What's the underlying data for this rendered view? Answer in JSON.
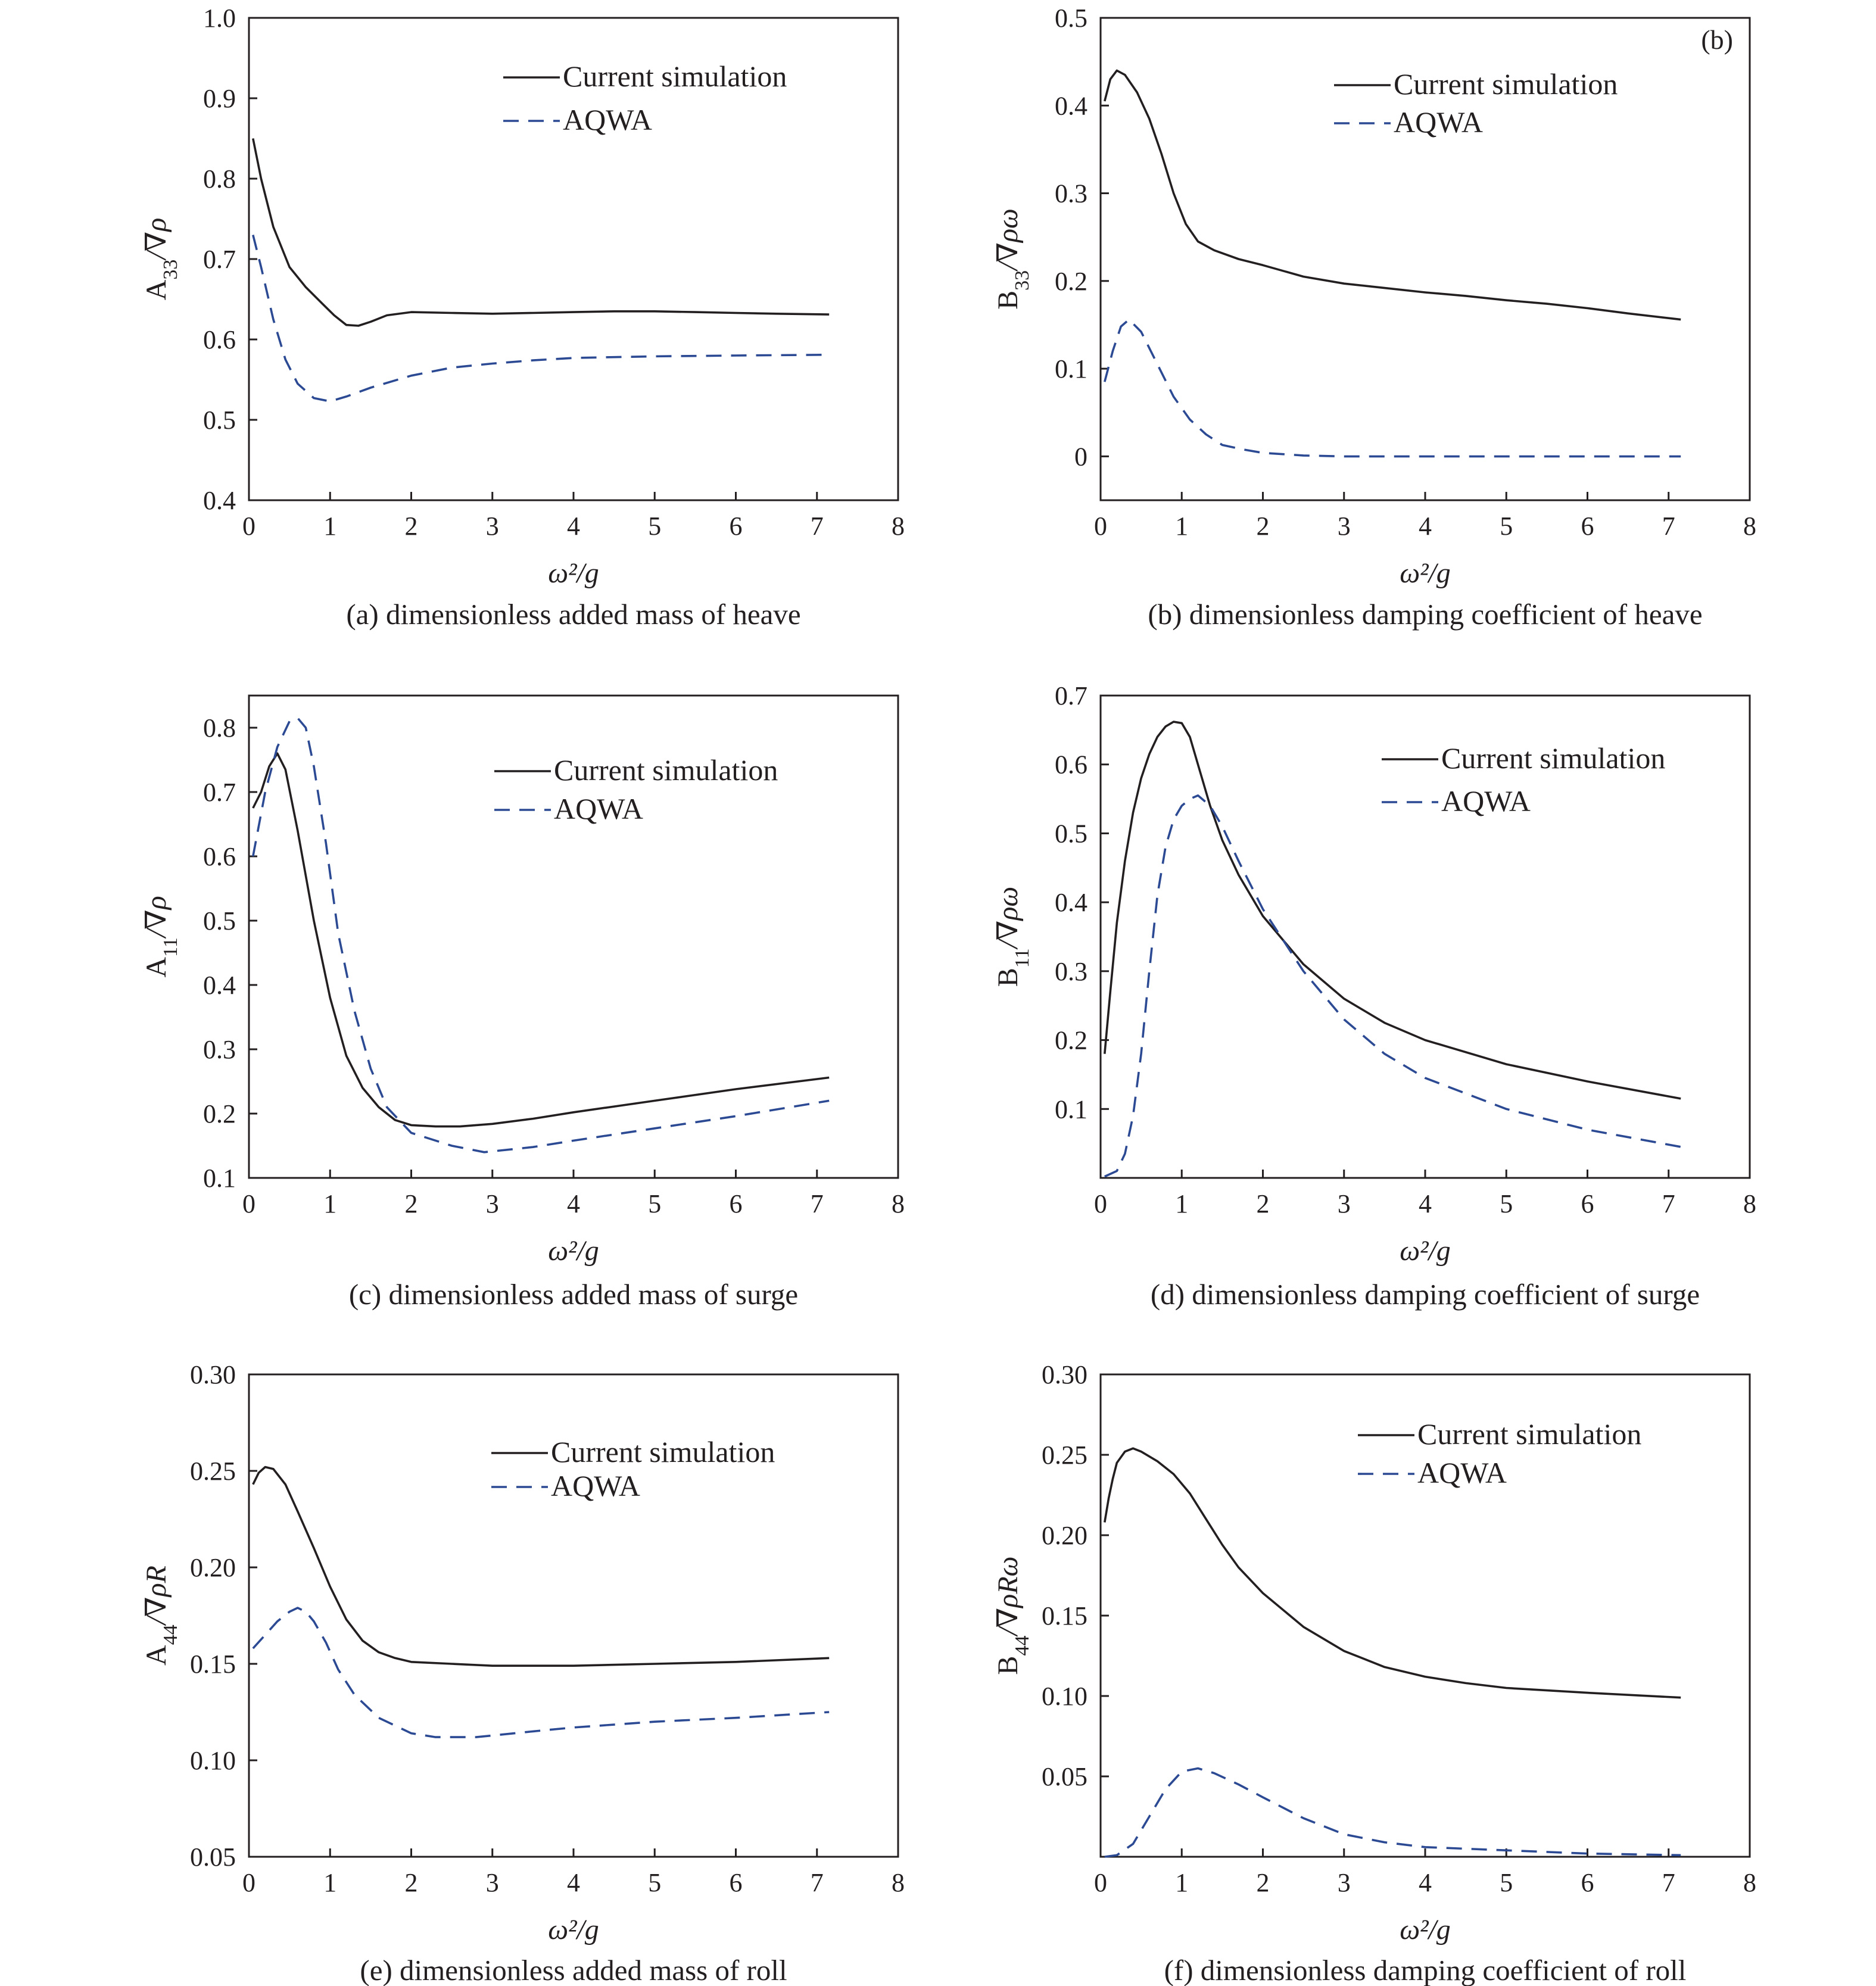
{
  "figure": {
    "legend": {
      "simulation": "Current simulation",
      "aqwa": "AQWA"
    },
    "xlabel": "ω²/g"
  },
  "colors": {
    "simulation": "#231f20",
    "aqwa": "#2c4a93",
    "axes": "#231f20"
  },
  "chart_data": [
    {
      "id": "a",
      "type": "line",
      "caption": "(a) dimensionless added mass of heave",
      "ylabel_main": "A",
      "ylabel_sub": "33",
      "ylabel_rest": "/∇ρ",
      "xlabel": "ω²/g",
      "xlim": [
        0,
        8
      ],
      "ylim": [
        0.4,
        1.0
      ],
      "xticks": [
        "0",
        "1",
        "2",
        "3",
        "4",
        "5",
        "6",
        "7",
        "8"
      ],
      "yticks": [
        "0.4",
        "0.5",
        "0.6",
        "0.7",
        "0.8",
        "0.9",
        "1.0"
      ],
      "series": [
        {
          "name": "Current simulation",
          "x": [
            0.05,
            0.15,
            0.3,
            0.5,
            0.7,
            0.9,
            1.05,
            1.2,
            1.35,
            1.5,
            1.7,
            2.0,
            2.5,
            3.0,
            3.5,
            4.0,
            4.5,
            5.0,
            5.5,
            6.0,
            6.5,
            7.15
          ],
          "y": [
            0.85,
            0.8,
            0.74,
            0.69,
            0.665,
            0.645,
            0.63,
            0.618,
            0.617,
            0.622,
            0.63,
            0.634,
            0.633,
            0.632,
            0.633,
            0.634,
            0.635,
            0.635,
            0.634,
            0.633,
            0.632,
            0.631
          ]
        },
        {
          "name": "AQWA",
          "x": [
            0.05,
            0.15,
            0.3,
            0.45,
            0.6,
            0.8,
            1.0,
            1.2,
            1.5,
            2.0,
            2.5,
            3.0,
            3.5,
            4.0,
            4.5,
            5.0,
            6.0,
            7.15
          ],
          "y": [
            0.73,
            0.69,
            0.625,
            0.575,
            0.545,
            0.527,
            0.523,
            0.529,
            0.54,
            0.555,
            0.565,
            0.57,
            0.574,
            0.577,
            0.578,
            0.579,
            0.58,
            0.581
          ]
        }
      ]
    },
    {
      "id": "b",
      "type": "line",
      "caption": "(b) dimensionless damping coefficient of heave",
      "panel_tag": "(b)",
      "ylabel_main": "B",
      "ylabel_sub": "33",
      "ylabel_rest": "/∇ρω",
      "xlabel": "ω²/g",
      "xlim": [
        0,
        8
      ],
      "ylim": [
        -0.05,
        0.5
      ],
      "xticks": [
        "0",
        "1",
        "2",
        "3",
        "4",
        "5",
        "6",
        "7",
        "8"
      ],
      "yticks": [
        "0",
        "0.1",
        "0.2",
        "0.3",
        "0.4",
        "0.5"
      ],
      "series": [
        {
          "name": "Current simulation",
          "x": [
            0.05,
            0.12,
            0.2,
            0.3,
            0.45,
            0.6,
            0.75,
            0.9,
            1.05,
            1.2,
            1.4,
            1.7,
            2.0,
            2.5,
            3.0,
            3.5,
            4.0,
            4.5,
            5.0,
            5.5,
            6.0,
            6.5,
            7.15
          ],
          "y": [
            0.405,
            0.43,
            0.44,
            0.435,
            0.415,
            0.385,
            0.345,
            0.3,
            0.265,
            0.245,
            0.235,
            0.225,
            0.218,
            0.205,
            0.197,
            0.192,
            0.187,
            0.183,
            0.178,
            0.174,
            0.169,
            0.163,
            0.156
          ]
        },
        {
          "name": "AQWA",
          "x": [
            0.05,
            0.15,
            0.25,
            0.35,
            0.5,
            0.7,
            0.9,
            1.1,
            1.3,
            1.5,
            1.75,
            2.0,
            2.5,
            3.0,
            4.0,
            5.0,
            6.0,
            7.15
          ],
          "y": [
            0.085,
            0.12,
            0.148,
            0.156,
            0.142,
            0.105,
            0.068,
            0.042,
            0.025,
            0.013,
            0.008,
            0.004,
            0.001,
            0,
            0,
            0,
            0,
            0
          ]
        }
      ]
    },
    {
      "id": "c",
      "type": "line",
      "caption": "(c) dimensionless added mass of surge",
      "ylabel_main": "A",
      "ylabel_sub": "11",
      "ylabel_rest": "/∇ρ",
      "xlabel": "ω²/g",
      "xlim": [
        0,
        8
      ],
      "ylim": [
        0.1,
        0.85
      ],
      "xticks": [
        "0",
        "1",
        "2",
        "3",
        "4",
        "5",
        "6",
        "7",
        "8"
      ],
      "yticks": [
        "0.1",
        "0.2",
        "0.3",
        "0.4",
        "0.5",
        "0.6",
        "0.7",
        "0.8"
      ],
      "series": [
        {
          "name": "Current simulation",
          "x": [
            0.05,
            0.15,
            0.25,
            0.35,
            0.45,
            0.6,
            0.8,
            1.0,
            1.2,
            1.4,
            1.6,
            1.8,
            2.0,
            2.3,
            2.6,
            3.0,
            3.5,
            4.0,
            5.0,
            6.0,
            7.15
          ],
          "y": [
            0.675,
            0.7,
            0.74,
            0.76,
            0.735,
            0.64,
            0.5,
            0.38,
            0.29,
            0.24,
            0.21,
            0.19,
            0.182,
            0.18,
            0.18,
            0.184,
            0.192,
            0.202,
            0.22,
            0.238,
            0.256
          ]
        },
        {
          "name": "AQWA",
          "x": [
            0.05,
            0.2,
            0.35,
            0.5,
            0.6,
            0.7,
            0.8,
            0.95,
            1.1,
            1.3,
            1.5,
            1.7,
            2.0,
            2.5,
            2.9,
            3.5,
            4.0,
            5.0,
            6.0,
            7.15
          ],
          "y": [
            0.6,
            0.7,
            0.77,
            0.81,
            0.815,
            0.8,
            0.74,
            0.62,
            0.48,
            0.36,
            0.27,
            0.21,
            0.17,
            0.15,
            0.14,
            0.148,
            0.158,
            0.177,
            0.196,
            0.22
          ]
        }
      ]
    },
    {
      "id": "d",
      "type": "line",
      "caption": "(d) dimensionless damping coefficient of surge",
      "ylabel_main": "B",
      "ylabel_sub": "11",
      "ylabel_rest": "/∇ρω",
      "xlabel": "ω²/g",
      "xlim": [
        0,
        8
      ],
      "ylim": [
        0,
        0.7
      ],
      "xticks": [
        "0",
        "1",
        "2",
        "3",
        "4",
        "5",
        "6",
        "7",
        "8"
      ],
      "yticks": [
        "0.1",
        "0.2",
        "0.3",
        "0.4",
        "0.5",
        "0.6",
        "0.7"
      ],
      "series": [
        {
          "name": "Current simulation",
          "x": [
            0.05,
            0.12,
            0.2,
            0.3,
            0.4,
            0.5,
            0.6,
            0.7,
            0.8,
            0.9,
            1.0,
            1.1,
            1.2,
            1.35,
            1.5,
            1.7,
            2.0,
            2.5,
            3.0,
            3.5,
            4.0,
            5.0,
            6.0,
            7.15
          ],
          "y": [
            0.18,
            0.27,
            0.37,
            0.46,
            0.53,
            0.58,
            0.615,
            0.64,
            0.655,
            0.662,
            0.66,
            0.64,
            0.6,
            0.54,
            0.49,
            0.44,
            0.38,
            0.31,
            0.26,
            0.225,
            0.2,
            0.165,
            0.14,
            0.115
          ]
        },
        {
          "name": "AQWA",
          "x": [
            0.05,
            0.2,
            0.3,
            0.4,
            0.5,
            0.6,
            0.7,
            0.8,
            0.9,
            1.0,
            1.1,
            1.2,
            1.35,
            1.5,
            1.7,
            2.0,
            2.5,
            3.0,
            3.5,
            4.0,
            5.0,
            6.0,
            7.15
          ],
          "y": [
            0.002,
            0.01,
            0.035,
            0.09,
            0.18,
            0.3,
            0.41,
            0.48,
            0.52,
            0.54,
            0.55,
            0.555,
            0.54,
            0.51,
            0.46,
            0.39,
            0.3,
            0.23,
            0.18,
            0.145,
            0.1,
            0.07,
            0.045
          ]
        }
      ]
    },
    {
      "id": "e",
      "type": "line",
      "caption": "(e) dimensionless added mass of roll",
      "ylabel_main": "A",
      "ylabel_sub": "44",
      "ylabel_rest": "/∇ρR",
      "xlabel": "ω²/g",
      "xlim": [
        0,
        8
      ],
      "ylim": [
        0.05,
        0.3
      ],
      "xticks": [
        "0",
        "1",
        "2",
        "3",
        "4",
        "5",
        "6",
        "7",
        "8"
      ],
      "yticks": [
        "0.05",
        "0.10",
        "0.15",
        "0.20",
        "0.25",
        "0.30"
      ],
      "series": [
        {
          "name": "Current simulation",
          "x": [
            0.05,
            0.12,
            0.2,
            0.3,
            0.45,
            0.6,
            0.8,
            1.0,
            1.2,
            1.4,
            1.6,
            1.8,
            2.0,
            2.5,
            3.0,
            3.5,
            4.0,
            5.0,
            6.0,
            7.15
          ],
          "y": [
            0.243,
            0.249,
            0.252,
            0.251,
            0.243,
            0.229,
            0.21,
            0.19,
            0.173,
            0.162,
            0.156,
            0.153,
            0.151,
            0.15,
            0.149,
            0.149,
            0.149,
            0.15,
            0.151,
            0.153
          ]
        },
        {
          "name": "AQWA",
          "x": [
            0.05,
            0.2,
            0.35,
            0.5,
            0.6,
            0.7,
            0.8,
            0.95,
            1.1,
            1.3,
            1.6,
            2.0,
            2.3,
            2.8,
            3.5,
            4.0,
            5.0,
            6.0,
            7.15
          ],
          "y": [
            0.158,
            0.165,
            0.172,
            0.177,
            0.179,
            0.177,
            0.172,
            0.161,
            0.147,
            0.134,
            0.122,
            0.114,
            0.112,
            0.112,
            0.115,
            0.117,
            0.12,
            0.122,
            0.125
          ]
        }
      ]
    },
    {
      "id": "f",
      "type": "line",
      "caption": "(f) dimensionless damping coefficient of roll",
      "ylabel_main": "B",
      "ylabel_sub": "44",
      "ylabel_rest": "/∇ρRω",
      "xlabel": "ω²/g",
      "xlim": [
        0,
        8
      ],
      "ylim": [
        0,
        0.3
      ],
      "xticks": [
        "0",
        "1",
        "2",
        "3",
        "4",
        "5",
        "6",
        "7",
        "8"
      ],
      "yticks": [
        "0.05",
        "0.10",
        "0.15",
        "0.20",
        "0.25",
        "0.30"
      ],
      "series": [
        {
          "name": "Current simulation",
          "x": [
            0.05,
            0.1,
            0.15,
            0.2,
            0.3,
            0.4,
            0.5,
            0.7,
            0.9,
            1.1,
            1.3,
            1.5,
            1.7,
            2.0,
            2.5,
            3.0,
            3.5,
            4.0,
            4.5,
            5.0,
            6.0,
            7.15
          ],
          "y": [
            0.208,
            0.223,
            0.235,
            0.245,
            0.252,
            0.254,
            0.252,
            0.246,
            0.238,
            0.226,
            0.21,
            0.194,
            0.18,
            0.164,
            0.143,
            0.128,
            0.118,
            0.112,
            0.108,
            0.105,
            0.102,
            0.099
          ]
        },
        {
          "name": "AQWA",
          "x": [
            0.05,
            0.2,
            0.4,
            0.6,
            0.8,
            1.0,
            1.2,
            1.4,
            1.7,
            2.0,
            2.5,
            3.0,
            3.5,
            4.0,
            5.0,
            6.0,
            7.15
          ],
          "y": [
            0.0,
            0.001,
            0.008,
            0.025,
            0.042,
            0.053,
            0.055,
            0.052,
            0.045,
            0.037,
            0.024,
            0.014,
            0.009,
            0.006,
            0.004,
            0.002,
            0.001
          ]
        }
      ]
    }
  ]
}
